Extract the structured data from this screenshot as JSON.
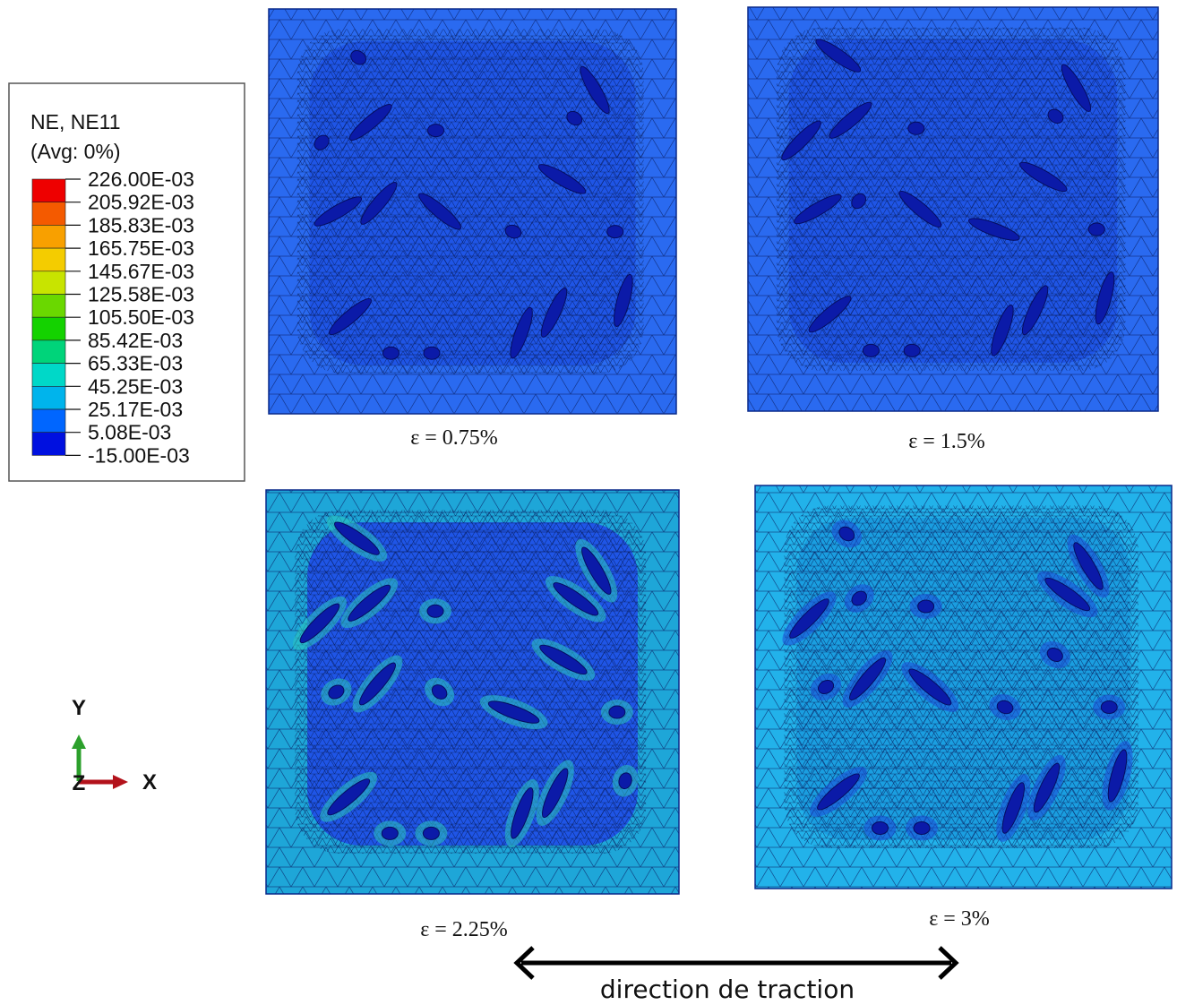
{
  "legend": {
    "title": "NE, NE11",
    "subtitle": "(Avg: 0%)",
    "labels": [
      "226.00E-03",
      "205.92E-03",
      "185.83E-03",
      "165.75E-03",
      "145.67E-03",
      "125.58E-03",
      "105.50E-03",
      "85.42E-03",
      "65.33E-03",
      "45.25E-03",
      "25.17E-03",
      "5.08E-03",
      "-15.00E-03"
    ]
  },
  "panels": [
    {
      "caption": "ε = 0.75%"
    },
    {
      "caption": "ε = 1.5%"
    },
    {
      "caption": "ε = 2.25%"
    },
    {
      "caption": "ε = 3%"
    }
  ],
  "triad": {
    "y": "Y",
    "z": "Z",
    "x": "X"
  },
  "direction": "direction de traction"
}
